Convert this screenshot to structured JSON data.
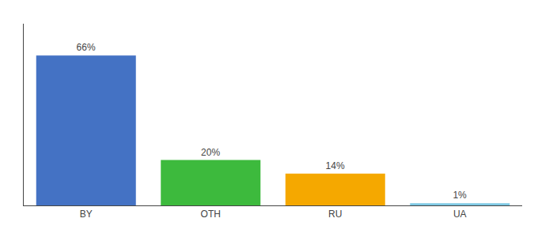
{
  "chart_data": {
    "type": "bar",
    "categories": [
      "BY",
      "OTH",
      "RU",
      "UA"
    ],
    "values": [
      66,
      20,
      14,
      1
    ],
    "value_labels": [
      "66%",
      "20%",
      "14%",
      "1%"
    ],
    "colors": [
      "#4472c4",
      "#3dba3d",
      "#f5a800",
      "#7ec8e3"
    ],
    "ylim": [
      0,
      80
    ],
    "grid": false,
    "data_labels": true,
    "tick_labels": "x"
  }
}
